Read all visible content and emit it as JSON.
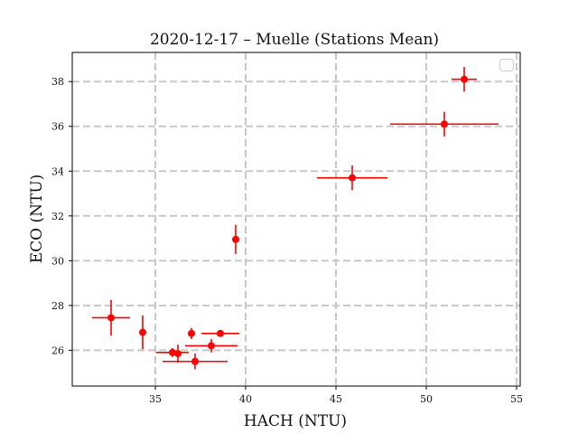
{
  "chart_data": {
    "type": "scatter",
    "title": "2020-12-17 – Muelle (Stations Mean)",
    "xlabel": "HACH (NTU)",
    "ylabel": "ECO (NTU)",
    "xlim": [
      30.4,
      55.2
    ],
    "ylim": [
      24.4,
      39.3
    ],
    "x_ticks": [
      35,
      40,
      45,
      50,
      55
    ],
    "y_ticks": [
      26,
      28,
      30,
      32,
      34,
      36,
      38
    ],
    "x_tick_labels": [
      "35",
      "40",
      "45",
      "50",
      "55"
    ],
    "y_tick_labels": [
      "26",
      "28",
      "30",
      "32",
      "34",
      "36",
      "38"
    ],
    "grid": true,
    "grid_style": "dashed",
    "legend": "top-right",
    "color": "#ff0000",
    "grid_color": "#c8c8c8",
    "points": [
      {
        "x": 52.1,
        "y": 38.1,
        "xerr": 0.7,
        "yerr": 0.55
      },
      {
        "x": 51.0,
        "y": 36.1,
        "xerr": 3.0,
        "yerr": 0.55
      },
      {
        "x": 45.9,
        "y": 33.7,
        "xerr": 1.95,
        "yerr": 0.55
      },
      {
        "x": 39.45,
        "y": 30.95,
        "xerr": 0.0,
        "yerr": 0.65
      },
      {
        "x": 32.55,
        "y": 27.45,
        "xerr": 1.05,
        "yerr": 0.8
      },
      {
        "x": 34.3,
        "y": 26.8,
        "xerr": 0.0,
        "yerr": 0.75
      },
      {
        "x": 37.0,
        "y": 26.75,
        "xerr": 0.0,
        "yerr": 0.25
      },
      {
        "x": 38.6,
        "y": 26.75,
        "xerr": 1.05,
        "yerr": 0.0
      },
      {
        "x": 38.1,
        "y": 26.2,
        "xerr": 1.45,
        "yerr": 0.3
      },
      {
        "x": 35.95,
        "y": 25.9,
        "xerr": 0.9,
        "yerr": 0.2
      },
      {
        "x": 36.25,
        "y": 25.85,
        "xerr": 0.0,
        "yerr": 0.4
      },
      {
        "x": 37.2,
        "y": 25.5,
        "xerr": 1.8,
        "yerr": 0.35
      }
    ]
  }
}
